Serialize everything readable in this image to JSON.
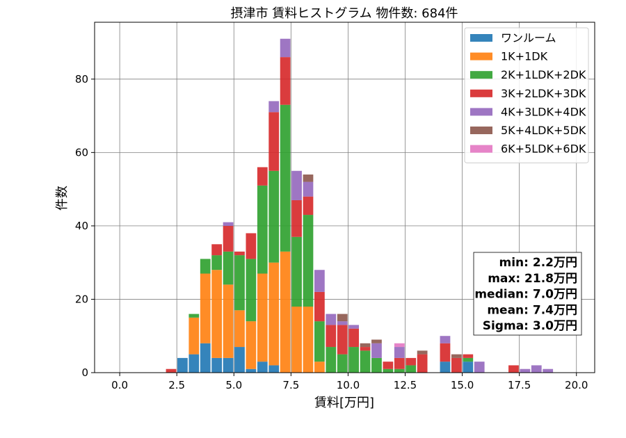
{
  "chart_data": {
    "type": "bar",
    "stacked": true,
    "title": "摂津市 賃料ヒストグラム  物件数: 684件",
    "xlabel": "賃料[万円]",
    "ylabel": "件数",
    "xlim": [
      -1.1,
      20.8
    ],
    "ylim": [
      0,
      95.5
    ],
    "xticks": [
      0.0,
      2.5,
      5.0,
      7.5,
      10.0,
      12.5,
      15.0,
      17.5,
      20.0
    ],
    "xtick_labels": [
      "0.0",
      "2.5",
      "5.0",
      "7.5",
      "10.0",
      "12.5",
      "15.0",
      "17.5",
      "20.0"
    ],
    "yticks": [
      0,
      20,
      40,
      60,
      80
    ],
    "ytick_labels": [
      "0",
      "20",
      "40",
      "60",
      "80"
    ],
    "grid": true,
    "legend_position": "top-right",
    "bin_width": 0.5,
    "x": [
      2.0,
      2.5,
      3.0,
      3.5,
      4.0,
      4.5,
      5.0,
      5.5,
      6.0,
      6.5,
      7.0,
      7.5,
      8.0,
      8.5,
      9.0,
      9.5,
      10.0,
      10.5,
      11.0,
      11.5,
      12.0,
      12.5,
      13.0,
      13.5,
      14.0,
      14.5,
      15.0,
      15.5,
      16.0,
      16.5,
      17.0,
      17.5,
      18.0,
      18.5
    ],
    "series": [
      {
        "name": "ワンルーム",
        "color": "#1f77b4",
        "values": [
          0,
          4,
          5,
          8,
          4,
          4,
          7,
          1,
          3,
          2,
          0,
          0,
          0,
          0,
          0,
          0,
          0,
          0,
          0,
          0,
          0,
          0,
          0,
          0,
          3,
          0,
          3,
          0,
          0,
          0,
          0,
          0,
          0,
          0
        ]
      },
      {
        "name": "1K+1DK",
        "color": "#ff7f0e",
        "values": [
          0,
          0,
          10,
          19,
          24,
          20,
          10,
          13,
          24,
          28,
          33,
          18,
          18,
          3,
          0,
          0,
          0,
          0,
          0,
          0,
          0,
          0,
          0,
          0,
          0,
          0,
          0,
          0,
          0,
          0,
          0,
          0,
          0,
          0
        ]
      },
      {
        "name": "2K+1LDK+2DK",
        "color": "#2ca02c",
        "values": [
          0,
          0,
          1,
          4,
          4,
          9,
          15,
          17,
          24,
          25,
          40,
          19,
          25,
          11,
          7,
          5,
          7,
          6,
          4,
          1,
          1,
          2,
          0,
          0,
          0,
          0,
          1,
          0,
          0,
          0,
          0,
          0,
          0,
          0
        ]
      },
      {
        "name": "3K+2LDK+3DK",
        "color": "#d62728",
        "values": [
          1,
          0,
          0,
          0,
          3,
          7,
          1,
          7,
          5,
          16,
          13,
          10,
          5,
          8,
          6,
          8,
          5,
          1,
          0,
          2,
          3,
          2,
          5,
          0,
          5,
          4,
          1,
          0,
          0,
          0,
          2,
          0,
          0,
          0
        ]
      },
      {
        "name": "4K+3LDK+4DK",
        "color": "#9467bd",
        "values": [
          0,
          0,
          0,
          0,
          0,
          1,
          0,
          0,
          0,
          3,
          5,
          8,
          4,
          6,
          3,
          1,
          1,
          0,
          4,
          0,
          3,
          0,
          0,
          0,
          2,
          0,
          0,
          3,
          0,
          0,
          0,
          1,
          2,
          1
        ]
      },
      {
        "name": "5K+4LDK+5DK",
        "color": "#8c564b",
        "values": [
          0,
          0,
          0,
          0,
          0,
          0,
          0,
          0,
          0,
          0,
          0,
          0,
          2,
          0,
          0,
          2,
          0,
          1,
          1,
          0,
          0,
          0,
          1,
          0,
          0,
          1,
          0,
          0,
          0,
          0,
          0,
          0,
          0,
          0
        ]
      },
      {
        "name": "6K+5LDK+6DK",
        "color": "#e377c2",
        "values": [
          0,
          0,
          0,
          0,
          0,
          0,
          0,
          0,
          0,
          0,
          0,
          0,
          0,
          0,
          0,
          0,
          0,
          0,
          0,
          0,
          1,
          0,
          0,
          0,
          0,
          0,
          0,
          0,
          0,
          0,
          0,
          0,
          0,
          0
        ]
      }
    ],
    "stats_annotation": [
      "min: 2.2万円",
      "max: 21.8万円",
      "median: 7.0万円",
      "mean: 7.4万円",
      "Sigma: 3.0万円"
    ],
    "annotation_position": "right"
  }
}
